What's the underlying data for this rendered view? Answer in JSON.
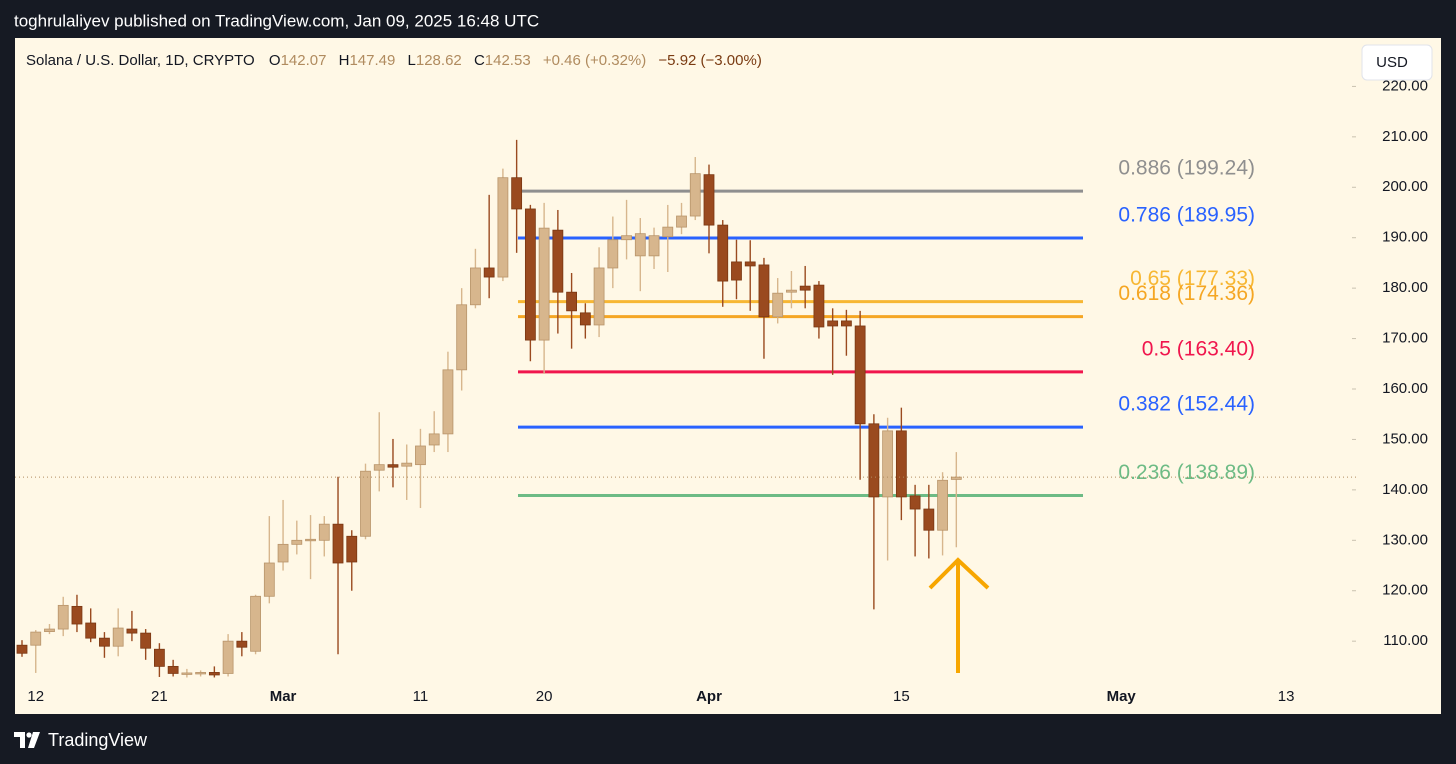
{
  "header": {
    "publisher": "toghrulaliyev published on TradingView.com, Jan 09, 2025 16:48 UTC"
  },
  "footer": {
    "brand": "TradingView"
  },
  "chart_data": {
    "type": "candlestick",
    "title": "Solana / U.S. Dollar, 1D, CRYPTO",
    "legend": [
      {
        "key": "O",
        "value": 142.07
      },
      {
        "key": "H",
        "value": 147.49
      },
      {
        "key": "L",
        "value": 128.62
      },
      {
        "key": "C",
        "value": 142.53
      }
    ],
    "change": "+0.46 (+0.32%)",
    "range_change": "−5.92 (−3.00%)",
    "currency": "USD",
    "up_color": "#d7b68d",
    "down_color": "#9a4a1f",
    "categories": [
      null,
      "12",
      null,
      null,
      null,
      null,
      null,
      null,
      null,
      null,
      "21",
      null,
      null,
      null,
      null,
      null,
      null,
      null,
      null,
      "Mar",
      null,
      null,
      null,
      null,
      null,
      null,
      null,
      null,
      null,
      "11",
      null,
      null,
      null,
      null,
      null,
      null,
      null,
      null,
      "20",
      null,
      null,
      null,
      null,
      null,
      null,
      null,
      null,
      null,
      null,
      null,
      "Apr",
      null,
      null,
      null,
      null,
      null,
      null,
      null,
      null,
      null,
      null,
      null,
      null,
      null,
      "15",
      null,
      null,
      null,
      null,
      null,
      null,
      null,
      null,
      null,
      null,
      null,
      null,
      null,
      null,
      null,
      "May",
      null,
      null,
      null,
      null,
      null,
      null,
      null,
      null,
      null,
      null,
      null,
      "13",
      null,
      null,
      null,
      null
    ],
    "open": [
      109.2,
      109.2,
      111.9,
      112.4,
      116.9,
      113.6,
      110.6,
      109.0,
      112.4,
      111.6,
      108.4,
      105.0,
      103.5,
      103.5,
      103.8,
      103.6,
      110.0,
      108.0,
      118.9,
      125.7,
      129.2,
      130.1,
      130.0,
      133.2,
      130.8,
      130.8,
      143.9,
      145.0,
      144.7,
      145.0,
      148.9,
      151.1,
      163.8,
      176.7,
      184.0,
      182.2,
      201.9,
      195.7,
      169.7,
      191.5,
      179.2,
      175.1,
      172.7,
      184.0,
      189.6,
      186.4,
      186.4,
      190.2,
      192.1,
      194.3,
      202.5,
      192.5,
      185.2,
      185.2,
      184.6,
      174.3,
      179.2,
      180.4,
      180.6,
      173.5,
      173.5,
      172.5,
      153.1,
      138.6,
      151.7,
      138.8,
      136.2,
      132.0,
      142.07,
      null,
      null,
      null,
      null,
      null,
      null,
      null,
      null,
      null,
      null,
      null,
      null,
      null,
      null,
      null,
      null,
      null,
      null,
      null,
      null,
      null,
      null,
      null,
      null,
      null,
      null,
      null,
      null
    ],
    "high": [
      110.2,
      112.2,
      113.4,
      118.8,
      119.2,
      116.5,
      111.8,
      116.5,
      116.0,
      112.4,
      109.6,
      106.3,
      104.5,
      104.2,
      105.0,
      111.4,
      111.8,
      119.2,
      134.8,
      138.0,
      133.9,
      135.0,
      134.8,
      142.6,
      132.0,
      145.2,
      155.4,
      150.1,
      149.0,
      152.1,
      155.6,
      167.4,
      180.0,
      187.8,
      198.5,
      203.7,
      209.4,
      196.5,
      196.9,
      195.5,
      183.0,
      177.0,
      188.1,
      194.2,
      197.5,
      193.9,
      192.0,
      196.5,
      196.9,
      206.0,
      204.5,
      193.5,
      189.6,
      189.5,
      186.0,
      182.0,
      183.4,
      184.4,
      181.4,
      176.0,
      175.7,
      175.5,
      155.0,
      154.3,
      156.3,
      141.0,
      141.0,
      143.5,
      147.49,
      null,
      null,
      null,
      null,
      null,
      null,
      null,
      null,
      null,
      null,
      null,
      null,
      null,
      null,
      null,
      null,
      null,
      null,
      null,
      null,
      null,
      null,
      null,
      null,
      null,
      null,
      null,
      null
    ],
    "low": [
      106.9,
      103.7,
      111.4,
      111.0,
      111.8,
      109.8,
      106.7,
      107.0,
      110.0,
      106.3,
      102.9,
      103.0,
      102.8,
      103.0,
      102.8,
      103.0,
      107.0,
      107.4,
      117.5,
      124.0,
      127.2,
      122.3,
      126.8,
      107.4,
      120.0,
      130.2,
      139.7,
      140.5,
      138.0,
      136.4,
      147.5,
      147.5,
      159.7,
      176.0,
      178.0,
      181.4,
      187.0,
      165.5,
      163.0,
      171.0,
      168.0,
      170.0,
      170.3,
      180.0,
      185.7,
      179.4,
      183.8,
      183.2,
      190.7,
      193.5,
      186.9,
      176.3,
      177.8,
      175.5,
      166.0,
      173.0,
      176.0,
      176.0,
      170.0,
      162.8,
      166.6,
      142.0,
      116.3,
      126.0,
      134.0,
      126.8,
      126.4,
      127.0,
      128.62,
      null,
      null,
      null,
      null,
      null,
      null,
      null,
      null,
      null,
      null,
      null,
      null,
      null,
      null,
      null,
      null,
      null,
      null,
      null,
      null,
      null,
      null,
      null,
      null,
      null,
      null,
      null,
      null
    ],
    "close": [
      107.6,
      111.8,
      112.4,
      117.1,
      113.4,
      110.6,
      109.0,
      112.6,
      111.6,
      108.6,
      105.0,
      103.6,
      103.7,
      103.8,
      103.3,
      110.0,
      108.8,
      118.9,
      125.5,
      129.2,
      130.0,
      130.2,
      133.2,
      125.5,
      125.7,
      143.7,
      145.0,
      144.5,
      145.3,
      148.7,
      151.1,
      163.8,
      176.7,
      184.0,
      182.2,
      201.9,
      195.7,
      169.7,
      191.9,
      179.2,
      175.5,
      172.7,
      184.0,
      189.6,
      190.4,
      190.8,
      190.4,
      192.1,
      194.3,
      202.7,
      192.5,
      181.4,
      181.6,
      184.4,
      174.3,
      179.0,
      179.6,
      179.6,
      172.3,
      172.5,
      172.5,
      153.1,
      138.6,
      151.7,
      138.6,
      136.2,
      132.0,
      141.9,
      142.53,
      null,
      null,
      null,
      null,
      null,
      null,
      null,
      null,
      null,
      null,
      null,
      null,
      null,
      null,
      null,
      null,
      null,
      null,
      null,
      null,
      null,
      null,
      null,
      null,
      null,
      null,
      null,
      null
    ],
    "fib_levels": [
      {
        "text": "0.886 (199.24)",
        "value": 199.24,
        "color": "#8f8f8f"
      },
      {
        "text": "0.786 (189.95)",
        "value": 189.95,
        "color": "#2962ff"
      },
      {
        "text": "0.65 (177.33)",
        "value": 177.33,
        "color": "#f7b733"
      },
      {
        "text": "0.618 (174.36)",
        "value": 174.36,
        "color": "#f5a623"
      },
      {
        "text": "0.5 (163.40)",
        "value": 163.4,
        "color": "#f0164d"
      },
      {
        "text": "0.382 (152.44)",
        "value": 152.44,
        "color": "#2962ff"
      },
      {
        "text": "0.236 (138.89)",
        "value": 138.89,
        "color": "#6dbb85"
      }
    ],
    "ylim": [
      102.3,
      229.6
    ],
    "yticks": [
      {
        "value": 110,
        "label": "110.00"
      },
      {
        "value": 120,
        "label": "120.00"
      },
      {
        "value": 130,
        "label": "130.00"
      },
      {
        "value": 140,
        "label": "140.00"
      },
      {
        "value": 150,
        "label": "150.00"
      },
      {
        "value": 160,
        "label": "160.00"
      },
      {
        "value": 170,
        "label": "170.00"
      },
      {
        "value": 180,
        "label": "180.00"
      },
      {
        "value": 190,
        "label": "190.00"
      },
      {
        "value": 200,
        "label": "200.00"
      },
      {
        "value": 210,
        "label": "210.00"
      },
      {
        "value": 220,
        "label": "220.00"
      }
    ]
  }
}
